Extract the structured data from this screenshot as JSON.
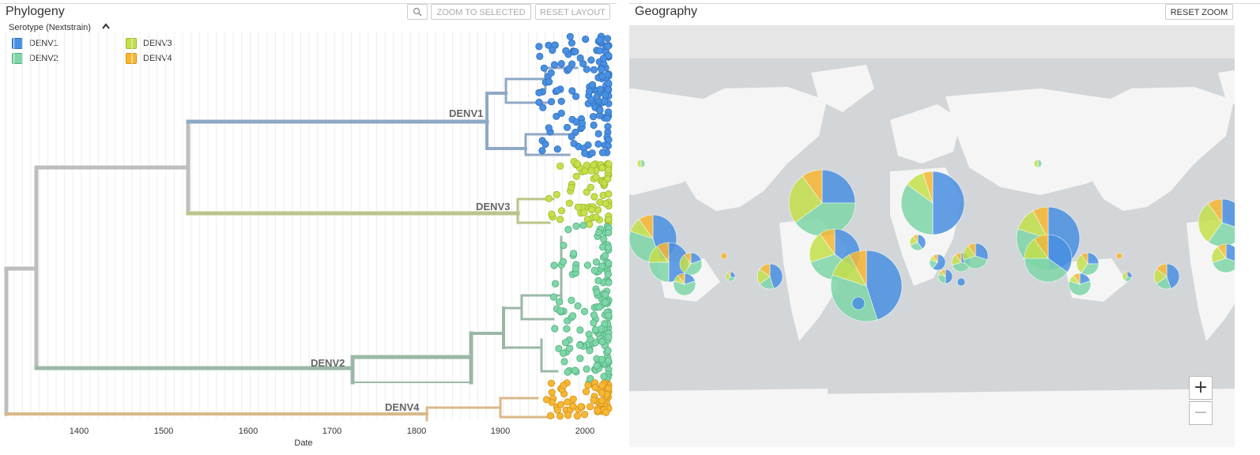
{
  "phylogeny": {
    "title": "Phylogeny",
    "buttons": {
      "magnify_icon": "magnifier-icon",
      "zoom_selected": "ZOOM TO SELECTED",
      "reset_layout": "RESET LAYOUT"
    },
    "legend": {
      "title": "Serotype (Nextstrain)",
      "items": [
        {
          "label": "DENV1",
          "color": "#4a90e2"
        },
        {
          "label": "DENV2",
          "color": "#7fd6a8"
        },
        {
          "label": "DENV3",
          "color": "#c4e04a"
        },
        {
          "label": "DENV4",
          "color": "#f7b733"
        }
      ]
    },
    "clade_labels": [
      "DENV1",
      "DENV3",
      "DENV2",
      "DENV4"
    ],
    "axis": {
      "label": "Date",
      "ticks": [
        "1400",
        "1500",
        "1600",
        "1700",
        "1800",
        "1900",
        "2000"
      ]
    }
  },
  "geography": {
    "title": "Geography",
    "reset_zoom": "RESET ZOOM",
    "zoom_in": "+",
    "zoom_out": "−",
    "colors": {
      "ocean": "#d2d6d8",
      "land": "#f5f5f5",
      "top_band": "#e6e6e6"
    }
  },
  "colors": {
    "denv1": "#4a90e2",
    "denv2": "#7fd6a8",
    "denv3": "#c4e04a",
    "denv4": "#f7b733",
    "branch_root": "#bdbdbd",
    "branch_denv1": "#8fa8c4",
    "branch_denv3": "#b9c58a",
    "branch_denv2": "#9bb8a6",
    "branch_denv4": "#d8b98a"
  }
}
